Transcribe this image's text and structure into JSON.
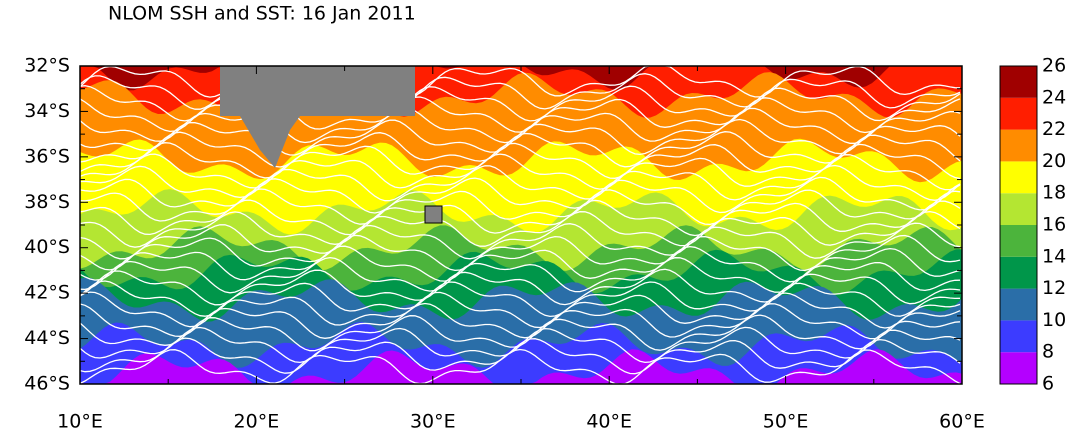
{
  "title": "NLOM SSH and SST: 16 Jan 2011",
  "lat_labels": [
    "32°S",
    "34°S",
    "36°S",
    "38°S",
    "40°S",
    "42°S",
    "44°S",
    "46°S"
  ],
  "lon_labels": [
    "10°E",
    "20°E",
    "30°E",
    "40°E",
    "50°E",
    "60°E"
  ],
  "colorbar": {
    "levels": [
      6,
      8,
      10,
      12,
      14,
      16,
      18,
      20,
      22,
      24,
      26
    ],
    "colors": [
      "#b400ff",
      "#3c3cff",
      "#2a6ea8",
      "#00964a",
      "#4cb43c",
      "#b4e632",
      "#ffff00",
      "#ff8c00",
      "#ff1e00",
      "#a00000"
    ]
  }
}
